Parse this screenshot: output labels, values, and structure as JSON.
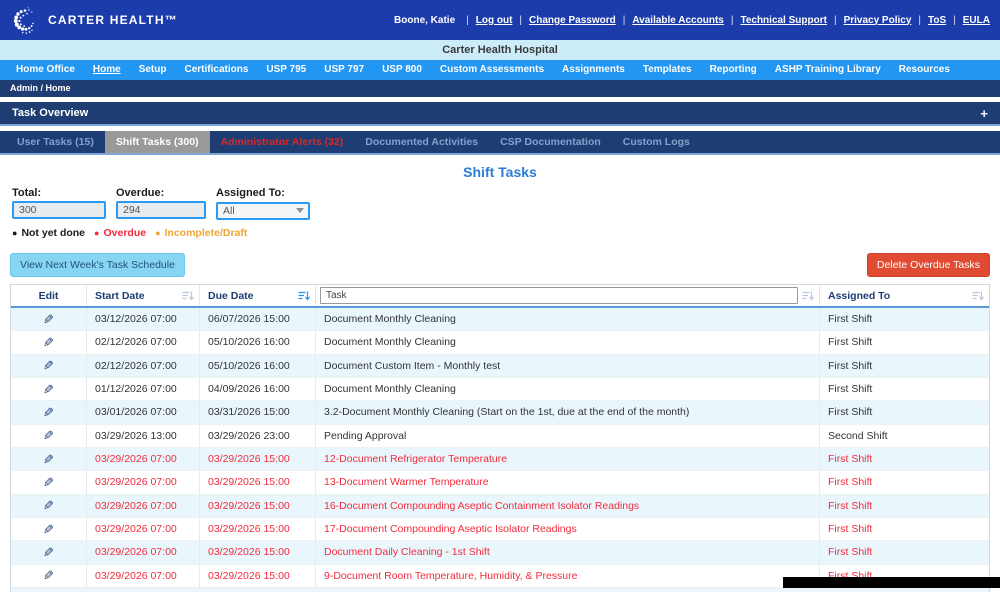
{
  "header": {
    "logo_text": "Carter Health™",
    "user_name": "Boone, Katie",
    "separator": "|",
    "links": [
      "Log out",
      "Change Password",
      "Available Accounts",
      "Technical Support",
      "Privacy Policy",
      "ToS",
      "EULA"
    ]
  },
  "subtitle": "Carter Health Hospital",
  "nav": {
    "items": [
      "Home Office",
      "Home",
      "Setup",
      "Certifications",
      "USP 795",
      "USP 797",
      "USP 800",
      "Custom Assessments",
      "Assignments",
      "Templates",
      "Reporting",
      "ASHP Training Library",
      "Resources"
    ],
    "active": "Home"
  },
  "breadcrumb": "Admin / Home",
  "task_overview": {
    "title": "Task Overview",
    "expand_icon": "+"
  },
  "tabs": [
    {
      "label": "User Tasks (15)",
      "state": "inactive"
    },
    {
      "label": "Shift Tasks (300)",
      "state": "active"
    },
    {
      "label": "Administrator Alerts (32)",
      "state": "alert"
    },
    {
      "label": "Documented Activities",
      "state": "inactive"
    },
    {
      "label": "CSP Documentation",
      "state": "inactive"
    },
    {
      "label": "Custom Logs",
      "state": "inactive"
    }
  ],
  "page": {
    "title": "Shift Tasks",
    "filters": {
      "total_label": "Total:",
      "total_value": "300",
      "overdue_label": "Overdue:",
      "overdue_value": "294",
      "assigned_to_label": "Assigned To:",
      "assigned_to_value": "All"
    },
    "legend": [
      {
        "label": "Not yet done",
        "color": "#1a1a1a"
      },
      {
        "label": "Overdue",
        "color": "#f22c3d"
      },
      {
        "label": "Incomplete/Draft",
        "color": "#eda733"
      }
    ],
    "view_schedule_button": "View Next Week's Task Schedule",
    "delete_overdue_button": "Delete Overdue Tasks"
  },
  "table": {
    "headers": {
      "edit": "Edit",
      "start_date": "Start Date",
      "due_date": "Due Date",
      "task_filter_placeholder": "Task",
      "assigned_to": "Assigned To"
    },
    "rows": [
      {
        "start": "03/12/2026 07:00",
        "due": "06/07/2026 15:00",
        "task": "Document Monthly Cleaning",
        "assigned": "First Shift",
        "overdue": false
      },
      {
        "start": "02/12/2026 07:00",
        "due": "05/10/2026 16:00",
        "task": "Document Monthly Cleaning",
        "assigned": "First Shift",
        "overdue": false
      },
      {
        "start": "02/12/2026 07:00",
        "due": "05/10/2026 16:00",
        "task": "Document Custom Item - Monthly test",
        "assigned": "First Shift",
        "overdue": false
      },
      {
        "start": "01/12/2026 07:00",
        "due": "04/09/2026 16:00",
        "task": "Document Monthly Cleaning",
        "assigned": "First Shift",
        "overdue": false
      },
      {
        "start": "03/01/2026 07:00",
        "due": "03/31/2026 15:00",
        "task": "3.2-Document Monthly Cleaning (Start on the 1st, due at the end of the month)",
        "assigned": "First Shift",
        "overdue": false
      },
      {
        "start": "03/29/2026 13:00",
        "due": "03/29/2026 23:00",
        "task": "Pending Approval",
        "assigned": "Second Shift",
        "overdue": false
      },
      {
        "start": "03/29/2026 07:00",
        "due": "03/29/2026 15:00",
        "task": "12-Document Refrigerator Temperature",
        "assigned": "First Shift",
        "overdue": true
      },
      {
        "start": "03/29/2026 07:00",
        "due": "03/29/2026 15:00",
        "task": "13-Document Warmer Temperature",
        "assigned": "First Shift",
        "overdue": true
      },
      {
        "start": "03/29/2026 07:00",
        "due": "03/29/2026 15:00",
        "task": "16-Document Compounding Aseptic Containment Isolator Readings",
        "assigned": "First Shift",
        "overdue": true
      },
      {
        "start": "03/29/2026 07:00",
        "due": "03/29/2026 15:00",
        "task": "17-Document Compounding Aseptic Isolator Readings",
        "assigned": "First Shift",
        "overdue": true
      },
      {
        "start": "03/29/2026 07:00",
        "due": "03/29/2026 15:00",
        "task": "Document Daily Cleaning - 1st Shift",
        "assigned": "First Shift",
        "overdue": true
      },
      {
        "start": "03/29/2026 07:00",
        "due": "03/29/2026 15:00",
        "task": "9-Document Room Temperature, Humidity, & Pressure",
        "assigned": "First Shift",
        "overdue": true
      }
    ]
  },
  "colors": {
    "header_blue": "#1d3cab",
    "light_blue_bar": "#cdecfa",
    "nav_blue": "#2196f3",
    "dark_navy": "#1e3d72",
    "active_tab_gray": "#999999",
    "alert_red": "#d42a2a",
    "title_blue": "#2a7cd5",
    "overdue_red": "#f22c3d",
    "incomplete_orange": "#eda733",
    "delete_button_red": "#e04b33",
    "schedule_button_blue": "#86d5f2",
    "row_alt_blue": "#e9f7fd"
  }
}
